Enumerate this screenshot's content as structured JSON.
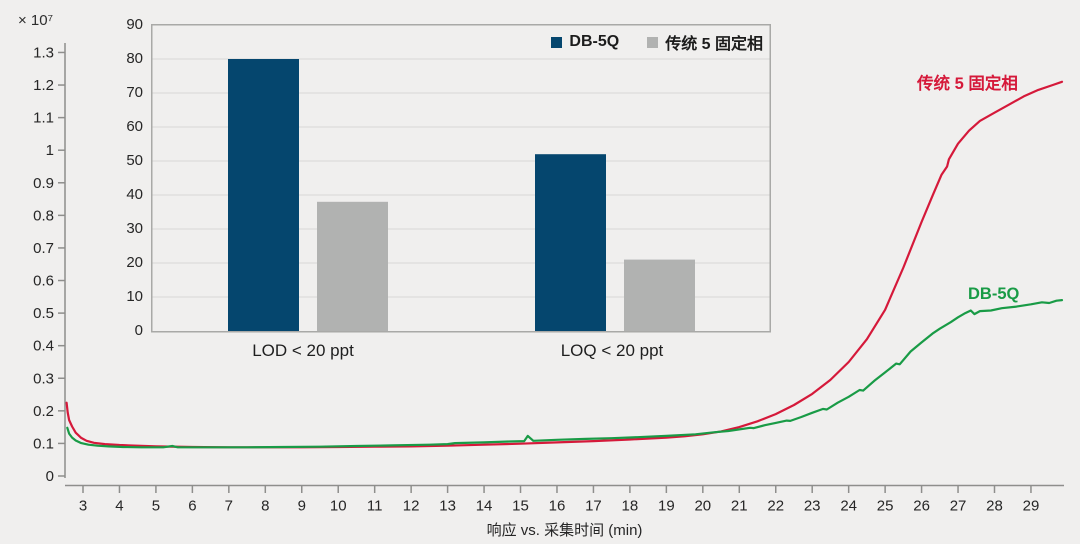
{
  "page": {
    "background": "#f0efee",
    "axis_color": "#8e8e8c",
    "tick_text_color": "#262626"
  },
  "chart_data": [
    {
      "id": "main",
      "type": "line",
      "title": "",
      "xlabel": "响应 vs. 采集时间 (min)",
      "ylabel": "",
      "y_exponent_label": "× 10⁷",
      "xlim": [
        2.5,
        29.9
      ],
      "ylim": [
        0,
        1.3
      ],
      "x_ticks": [
        3,
        4,
        5,
        6,
        7,
        8,
        9,
        10,
        11,
        12,
        13,
        14,
        15,
        16,
        17,
        18,
        19,
        20,
        21,
        22,
        23,
        24,
        25,
        26,
        27,
        28,
        29
      ],
      "y_ticks": [
        0,
        0.1,
        0.2,
        0.3,
        0.4,
        0.5,
        0.6,
        0.7,
        0.8,
        0.9,
        1,
        1.1,
        1.2,
        1.3
      ],
      "grid": false,
      "series": [
        {
          "name": "传统 5 固定相",
          "color": "#d5193a",
          "points": [
            [
              2.55,
              0.225
            ],
            [
              2.58,
              0.195
            ],
            [
              2.62,
              0.172
            ],
            [
              2.7,
              0.152
            ],
            [
              2.8,
              0.133
            ],
            [
              2.95,
              0.117
            ],
            [
              3.1,
              0.108
            ],
            [
              3.3,
              0.102
            ],
            [
              3.6,
              0.098
            ],
            [
              4,
              0.095
            ],
            [
              4.5,
              0.093
            ],
            [
              5,
              0.091
            ],
            [
              6,
              0.089
            ],
            [
              7,
              0.088
            ],
            [
              8,
              0.088
            ],
            [
              9,
              0.088
            ],
            [
              10,
              0.089
            ],
            [
              11,
              0.09
            ],
            [
              12,
              0.091
            ],
            [
              13,
              0.093
            ],
            [
              14,
              0.096
            ],
            [
              15,
              0.099
            ],
            [
              16,
              0.103
            ],
            [
              17,
              0.107
            ],
            [
              18,
              0.112
            ],
            [
              19,
              0.118
            ],
            [
              19.5,
              0.122
            ],
            [
              20,
              0.128
            ],
            [
              20.5,
              0.137
            ],
            [
              21,
              0.15
            ],
            [
              21.5,
              0.168
            ],
            [
              22,
              0.19
            ],
            [
              22.5,
              0.218
            ],
            [
              23,
              0.252
            ],
            [
              23.5,
              0.295
            ],
            [
              24,
              0.35
            ],
            [
              24.5,
              0.42
            ],
            [
              25,
              0.51
            ],
            [
              25.5,
              0.64
            ],
            [
              26,
              0.78
            ],
            [
              26.3,
              0.86
            ],
            [
              26.55,
              0.925
            ],
            [
              26.7,
              0.95
            ],
            [
              26.75,
              0.972
            ],
            [
              27,
              1.02
            ],
            [
              27.3,
              1.06
            ],
            [
              27.6,
              1.09
            ],
            [
              28,
              1.115
            ],
            [
              28.4,
              1.14
            ],
            [
              28.8,
              1.165
            ],
            [
              29.2,
              1.185
            ],
            [
              29.6,
              1.2
            ],
            [
              29.85,
              1.21
            ]
          ]
        },
        {
          "name": "DB-5Q",
          "color": "#199b46",
          "points": [
            [
              2.57,
              0.148
            ],
            [
              2.62,
              0.13
            ],
            [
              2.7,
              0.118
            ],
            [
              2.8,
              0.109
            ],
            [
              2.95,
              0.101
            ],
            [
              3.15,
              0.096
            ],
            [
              3.4,
              0.093
            ],
            [
              3.7,
              0.091
            ],
            [
              4.1,
              0.089
            ],
            [
              4.6,
              0.088
            ],
            [
              5.2,
              0.088
            ],
            [
              5.45,
              0.092
            ],
            [
              5.6,
              0.088
            ],
            [
              6.5,
              0.088
            ],
            [
              7.5,
              0.088
            ],
            [
              8.5,
              0.089
            ],
            [
              9.5,
              0.09
            ],
            [
              10.5,
              0.092
            ],
            [
              11.5,
              0.094
            ],
            [
              12.5,
              0.096
            ],
            [
              13,
              0.098
            ],
            [
              13.2,
              0.101
            ],
            [
              14,
              0.103
            ],
            [
              14.7,
              0.106
            ],
            [
              15.1,
              0.107
            ],
            [
              15.2,
              0.123
            ],
            [
              15.35,
              0.108
            ],
            [
              16,
              0.111
            ],
            [
              16.8,
              0.114
            ],
            [
              17.5,
              0.116
            ],
            [
              18.2,
              0.119
            ],
            [
              19,
              0.123
            ],
            [
              19.8,
              0.128
            ],
            [
              20.3,
              0.134
            ],
            [
              20.7,
              0.138
            ],
            [
              21,
              0.143
            ],
            [
              21.3,
              0.148
            ],
            [
              21.4,
              0.147
            ],
            [
              21.7,
              0.156
            ],
            [
              22,
              0.163
            ],
            [
              22.3,
              0.17
            ],
            [
              22.4,
              0.169
            ],
            [
              22.7,
              0.181
            ],
            [
              23,
              0.194
            ],
            [
              23.3,
              0.206
            ],
            [
              23.4,
              0.204
            ],
            [
              23.7,
              0.225
            ],
            [
              24,
              0.243
            ],
            [
              24.3,
              0.264
            ],
            [
              24.4,
              0.262
            ],
            [
              24.7,
              0.292
            ],
            [
              25,
              0.318
            ],
            [
              25.3,
              0.345
            ],
            [
              25.4,
              0.343
            ],
            [
              25.7,
              0.382
            ],
            [
              26,
              0.41
            ],
            [
              26.3,
              0.437
            ],
            [
              26.5,
              0.452
            ],
            [
              26.8,
              0.472
            ],
            [
              27,
              0.487
            ],
            [
              27.2,
              0.5
            ],
            [
              27.35,
              0.508
            ],
            [
              27.45,
              0.497
            ],
            [
              27.6,
              0.506
            ],
            [
              27.9,
              0.508
            ],
            [
              28.2,
              0.515
            ],
            [
              28.6,
              0.52
            ],
            [
              29,
              0.527
            ],
            [
              29.3,
              0.533
            ],
            [
              29.5,
              0.531
            ],
            [
              29.7,
              0.538
            ],
            [
              29.85,
              0.54
            ]
          ]
        }
      ]
    },
    {
      "id": "inset",
      "type": "bar",
      "title": "",
      "categories": [
        "LOD < 20 ppt",
        "LOQ < 20 ppt"
      ],
      "ylim": [
        0,
        90
      ],
      "y_ticks": [
        0,
        10,
        20,
        30,
        40,
        50,
        60,
        70,
        80,
        90
      ],
      "grid": true,
      "legend_position": "top-right",
      "border_color": "#a9a9a7",
      "gridline_color": "#dcdcda",
      "series": [
        {
          "name": "DB-5Q",
          "color": "#05466e",
          "values": [
            80,
            52
          ]
        },
        {
          "name": "传统 5 固定相",
          "color": "#b1b2b1",
          "values": [
            38,
            21
          ]
        }
      ]
    }
  ]
}
